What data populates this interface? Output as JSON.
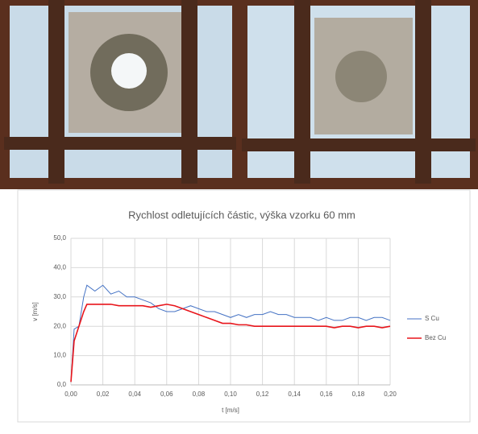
{
  "chart_data": {
    "type": "line",
    "title": "Rychlost odletujících částic, výška vzorku 60 mm",
    "x_label": "t [m/s]",
    "y_label": "v [m/s]",
    "x": [
      0,
      0.002,
      0.005,
      0.008,
      0.01,
      0.015,
      0.02,
      0.025,
      0.03,
      0.035,
      0.04,
      0.045,
      0.05,
      0.055,
      0.06,
      0.065,
      0.07,
      0.075,
      0.08,
      0.085,
      0.09,
      0.095,
      0.1,
      0.105,
      0.11,
      0.115,
      0.12,
      0.125,
      0.13,
      0.135,
      0.14,
      0.145,
      0.15,
      0.155,
      0.16,
      0.165,
      0.17,
      0.175,
      0.18,
      0.185,
      0.19,
      0.195,
      0.2
    ],
    "series": [
      {
        "name": "S Cu",
        "color": "#4472c4",
        "values": [
          1,
          19,
          20,
          30,
          34,
          32,
          34,
          31,
          32,
          30,
          30,
          29,
          28,
          26,
          25,
          25,
          26,
          27,
          26,
          25,
          25,
          24,
          23,
          24,
          23,
          24,
          24,
          25,
          24,
          24,
          23,
          23,
          23,
          22,
          23,
          22,
          22,
          23,
          23,
          22,
          23,
          23,
          22
        ]
      },
      {
        "name": "Bez Cu",
        "color": "#e8151b",
        "values": [
          1,
          15,
          20,
          25,
          27.5,
          27.5,
          27.5,
          27.5,
          27,
          27,
          27,
          27,
          26.5,
          27,
          27.5,
          27,
          26,
          25,
          24,
          23,
          22,
          21,
          21,
          20.5,
          20.5,
          20,
          20,
          20,
          20,
          20,
          20,
          20,
          20,
          20,
          20,
          19.5,
          20,
          20,
          19.5,
          20,
          20,
          19.5,
          20
        ]
      }
    ],
    "xlim": [
      0,
      0.2
    ],
    "xticks": [
      {
        "value": 0,
        "label": "0,00"
      },
      {
        "value": 0.02,
        "label": "0,02"
      },
      {
        "value": 0.04,
        "label": "0,04"
      },
      {
        "value": 0.06,
        "label": "0,06"
      },
      {
        "value": 0.08,
        "label": "0,08"
      },
      {
        "value": 0.1,
        "label": "0,10"
      },
      {
        "value": 0.12,
        "label": "0,12"
      },
      {
        "value": 0.14,
        "label": "0,14"
      },
      {
        "value": 0.16,
        "label": "0,16"
      },
      {
        "value": 0.18,
        "label": "0,18"
      },
      {
        "value": 0.2,
        "label": "0,20"
      }
    ],
    "ylim": [
      0,
      50
    ],
    "yticks": [
      {
        "value": 0,
        "label": "0,0"
      },
      {
        "value": 10,
        "label": "10,0"
      },
      {
        "value": 20,
        "label": "20,0"
      },
      {
        "value": 30,
        "label": "30,0"
      },
      {
        "value": 40,
        "label": "40,0"
      },
      {
        "value": 50,
        "label": "50,0"
      }
    ],
    "grid": true,
    "legend": "right"
  }
}
